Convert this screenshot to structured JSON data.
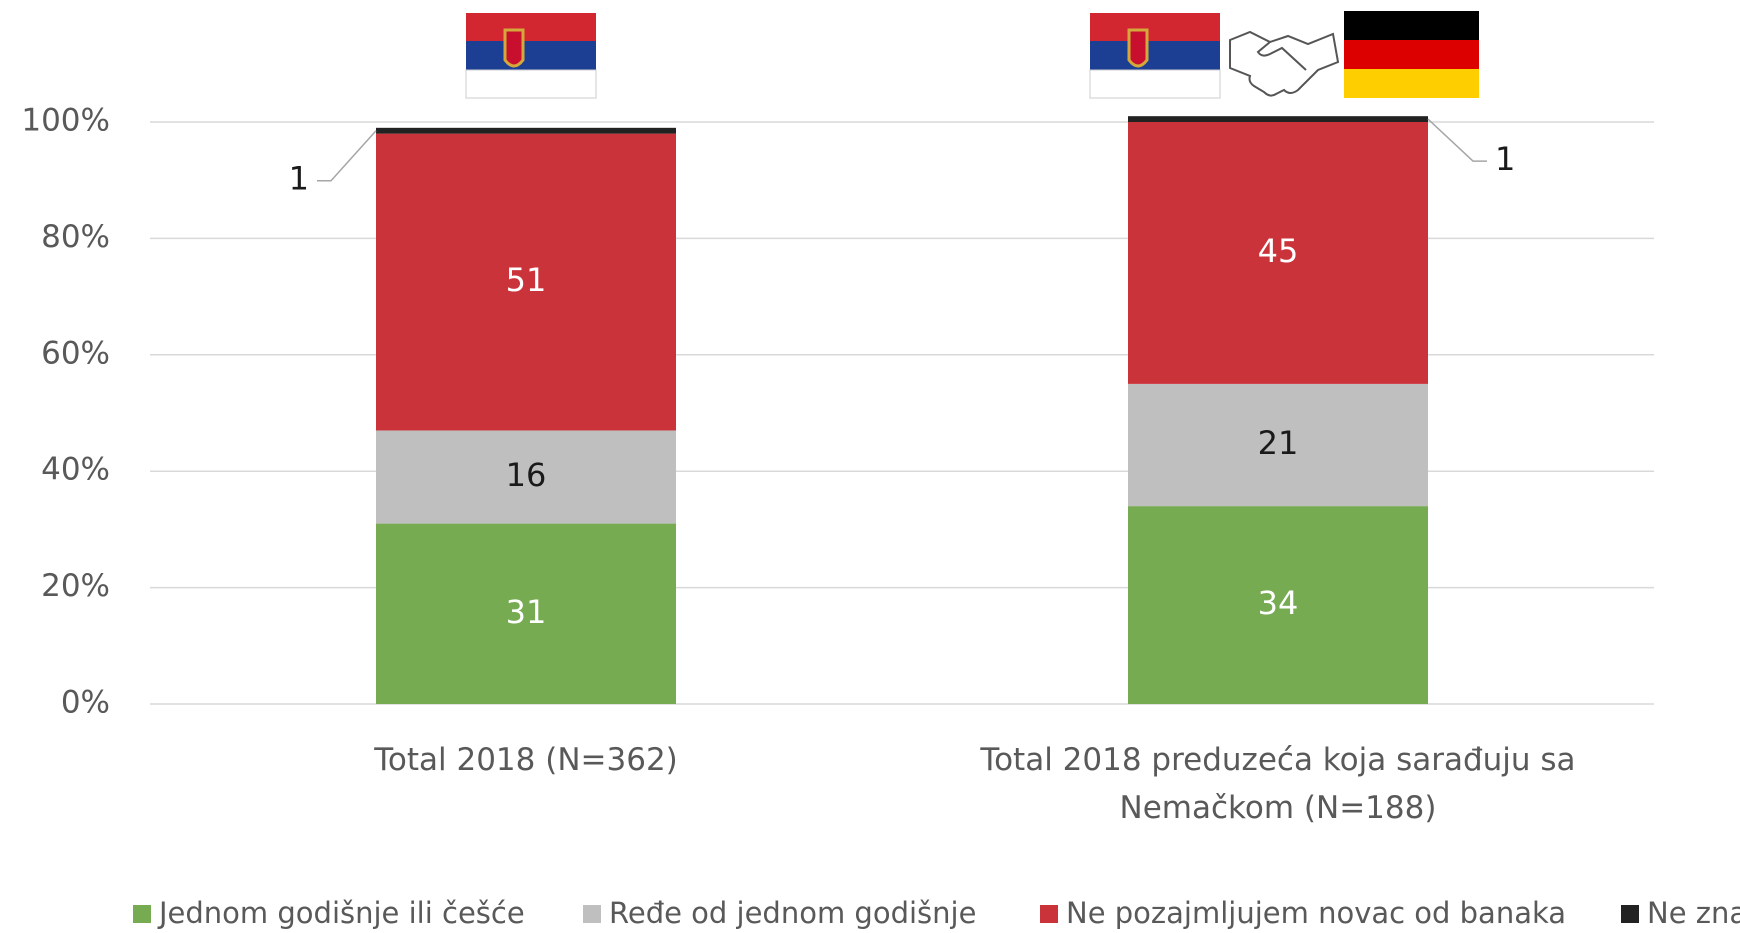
{
  "chart_data": {
    "type": "stacked_bar",
    "categories": [
      "Total 2018 (N=362)",
      "Total 2018 preduzeća koja sarađuju sa Nemačkom (N=188)"
    ],
    "series": [
      {
        "name": "Jednom godišnje ili češće",
        "color": "#76ab52",
        "label_color": "#ffffff",
        "values": [
          31,
          34
        ]
      },
      {
        "name": "Ređe od jednom godišnje",
        "color": "#bfbfbf",
        "label_color": "#1a1a1a",
        "values": [
          16,
          21
        ]
      },
      {
        "name": "Ne pozajmljujem novac od banaka",
        "color": "#cb333b",
        "label_color": "#ffffff",
        "values": [
          51,
          45
        ]
      },
      {
        "name": "Ne zna",
        "color": "#222222",
        "label_color": "#1a1a1a",
        "values": [
          1,
          1
        ]
      }
    ],
    "ylim": [
      0,
      100
    ],
    "yticks": [
      {
        "value": 0,
        "label": "0%"
      },
      {
        "value": 20,
        "label": "20%"
      },
      {
        "value": 40,
        "label": "40%"
      },
      {
        "value": 60,
        "label": "60%"
      },
      {
        "value": 80,
        "label": "80%"
      },
      {
        "value": 100,
        "label": "100%"
      }
    ],
    "grid": true
  }
}
